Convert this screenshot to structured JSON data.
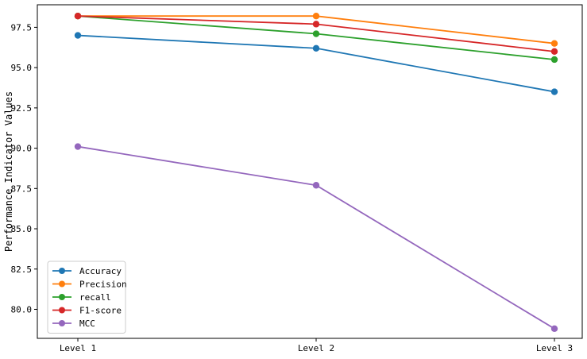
{
  "chart_data": {
    "type": "line",
    "categories": [
      "Level 1",
      "Level 2",
      "Level 3"
    ],
    "ylabel": "Performance Indicator Values",
    "xlabel": "",
    "title": "",
    "ylim": [
      78.2,
      98.9
    ],
    "yticks": [
      80.0,
      82.5,
      85.0,
      87.5,
      90.0,
      92.5,
      95.0,
      97.5
    ],
    "ytick_labels": [
      "80.0",
      "82.5",
      "85.0",
      "87.5",
      "90.0",
      "92.5",
      "95.0",
      "97.5"
    ],
    "grid": false,
    "legend_position": "lower-left",
    "series": [
      {
        "name": "Accuracy",
        "color": "#1f77b4",
        "values": [
          97.0,
          96.2,
          93.5
        ]
      },
      {
        "name": "Precision",
        "color": "#ff7f0e",
        "values": [
          98.2,
          98.2,
          96.5
        ]
      },
      {
        "name": "recall",
        "color": "#2ca02c",
        "values": [
          98.2,
          97.1,
          95.5
        ]
      },
      {
        "name": "F1-score",
        "color": "#d62728",
        "values": [
          98.2,
          97.7,
          96.0
        ]
      },
      {
        "name": "MCC",
        "color": "#9467bd",
        "values": [
          90.1,
          87.7,
          78.8
        ]
      }
    ]
  }
}
